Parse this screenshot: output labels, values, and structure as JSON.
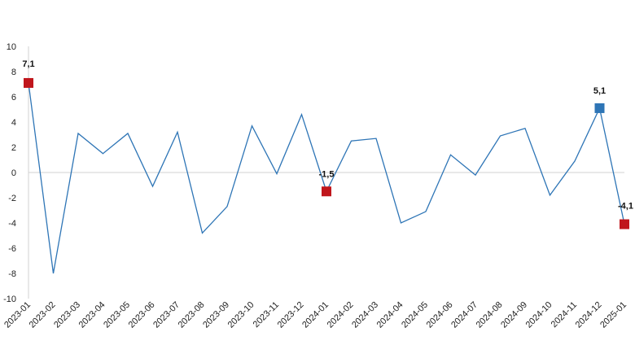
{
  "chart_data": {
    "type": "line",
    "title": "",
    "xlabel": "",
    "ylabel": "",
    "ylim": [
      -10,
      10
    ],
    "yticks": [
      -10,
      -8,
      -6,
      -4,
      -2,
      0,
      2,
      4,
      6,
      8,
      10
    ],
    "grid": false,
    "zero_line": true,
    "categories": [
      "2023-01",
      "2023-02",
      "2023-03",
      "2023-04",
      "2023-05",
      "2023-06",
      "2023-07",
      "2023-08",
      "2023-09",
      "2023-10",
      "2023-11",
      "2023-12",
      "2024-01",
      "2024-02",
      "2024-03",
      "2024-04",
      "2024-05",
      "2024-06",
      "2024-07",
      "2024-08",
      "2024-09",
      "2024-10",
      "2024-11",
      "2024-12",
      "2025-01"
    ],
    "series": [
      {
        "color": "#2e75b6",
        "values": [
          7.1,
          -8.0,
          3.1,
          1.5,
          3.1,
          -1.1,
          3.2,
          -4.8,
          -2.7,
          3.7,
          -0.1,
          4.6,
          -1.5,
          2.5,
          2.7,
          -4.0,
          -3.1,
          1.4,
          -0.2,
          2.9,
          3.5,
          -1.8,
          0.9,
          5.1,
          -4.1
        ]
      }
    ],
    "highlights": [
      {
        "index": 0,
        "label": "7,1",
        "color": "#c0161c"
      },
      {
        "index": 12,
        "label": "-1,5",
        "color": "#c0161c"
      },
      {
        "index": 23,
        "label": "5,1",
        "color": "#2e75b6"
      },
      {
        "index": 24,
        "label": "-4,1",
        "color": "#c0161c"
      }
    ]
  }
}
